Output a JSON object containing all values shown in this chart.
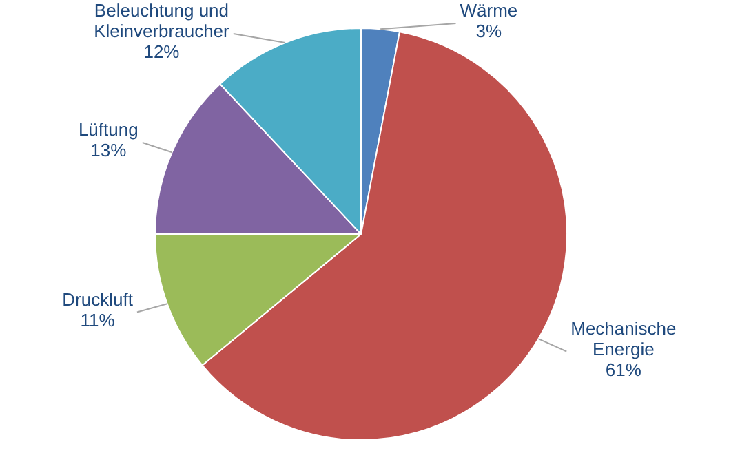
{
  "chart_data": {
    "type": "pie",
    "categories": [
      "Wärme",
      "Mechanische Energie",
      "Druckluft",
      "Lüftung",
      "Beleuchtung und Kleinverbraucher"
    ],
    "values": [
      3,
      61,
      11,
      13,
      12
    ],
    "colors": [
      "#4f81bd",
      "#c0504d",
      "#9bbb59",
      "#8064a2",
      "#4bacc6"
    ],
    "value_labels": [
      "3%",
      "61%",
      "11%",
      "13%",
      "12%"
    ],
    "legend": false
  }
}
